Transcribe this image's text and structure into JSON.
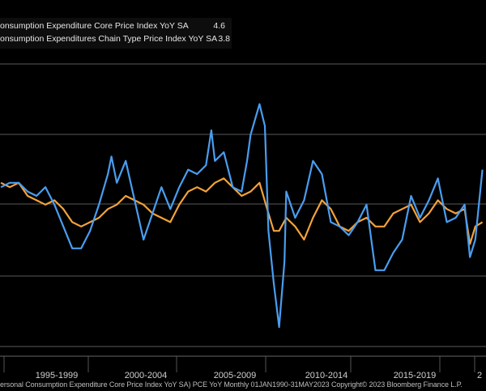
{
  "legend": [
    {
      "label": "onsumption Expenditure Core Price Index YoY SA",
      "value": "4.6",
      "color": "#f3a23a"
    },
    {
      "label": "onsumption Expenditures Chain Type Price Index YoY SA",
      "value": "3.8",
      "color": "#4a9df0"
    }
  ],
  "footer": "ersonal Consumption Expenditure Core Price Index YoY SA) PCE YoY  Monthly 01JAN1990-31MAY2023  Copyright© 2023 Bloomberg Finance L.P.",
  "chart_data": {
    "type": "line",
    "title": "",
    "xlabel": "",
    "ylabel": "",
    "x_tick_labels": [
      "1995-1999",
      "2000-2004",
      "2005-2009",
      "2010-2014",
      "2015-2019",
      "2"
    ],
    "grid": true,
    "background": "#000000",
    "series": [
      {
        "name": "onsumption Expenditure Core Price Index YoY SA",
        "color": "#f3a23a",
        "points": [
          [
            1994.0,
            2.3
          ],
          [
            1994.5,
            2.2
          ],
          [
            1995.0,
            2.3
          ],
          [
            1995.5,
            2.0
          ],
          [
            1996.0,
            1.9
          ],
          [
            1996.5,
            1.8
          ],
          [
            1997.0,
            1.9
          ],
          [
            1997.5,
            1.7
          ],
          [
            1998.0,
            1.4
          ],
          [
            1998.5,
            1.3
          ],
          [
            1999.0,
            1.4
          ],
          [
            1999.5,
            1.5
          ],
          [
            2000.0,
            1.7
          ],
          [
            2000.5,
            1.8
          ],
          [
            2001.0,
            2.0
          ],
          [
            2001.5,
            1.9
          ],
          [
            2002.0,
            1.8
          ],
          [
            2002.5,
            1.6
          ],
          [
            2003.0,
            1.5
          ],
          [
            2003.5,
            1.4
          ],
          [
            2004.0,
            1.8
          ],
          [
            2004.5,
            2.1
          ],
          [
            2005.0,
            2.2
          ],
          [
            2005.5,
            2.1
          ],
          [
            2006.0,
            2.3
          ],
          [
            2006.5,
            2.4
          ],
          [
            2007.0,
            2.2
          ],
          [
            2007.5,
            2.0
          ],
          [
            2008.0,
            2.1
          ],
          [
            2008.5,
            2.3
          ],
          [
            2009.0,
            1.6
          ],
          [
            2009.3,
            1.2
          ],
          [
            2009.6,
            1.2
          ],
          [
            2010.0,
            1.5
          ],
          [
            2010.5,
            1.3
          ],
          [
            2011.0,
            1.0
          ],
          [
            2011.5,
            1.5
          ],
          [
            2012.0,
            1.9
          ],
          [
            2012.5,
            1.7
          ],
          [
            2013.0,
            1.3
          ],
          [
            2013.5,
            1.2
          ],
          [
            2014.0,
            1.4
          ],
          [
            2014.5,
            1.5
          ],
          [
            2015.0,
            1.3
          ],
          [
            2015.5,
            1.3
          ],
          [
            2016.0,
            1.6
          ],
          [
            2016.5,
            1.7
          ],
          [
            2017.0,
            1.8
          ],
          [
            2017.5,
            1.4
          ],
          [
            2018.0,
            1.6
          ],
          [
            2018.5,
            1.9
          ],
          [
            2019.0,
            1.7
          ],
          [
            2019.5,
            1.6
          ],
          [
            2020.0,
            1.7
          ],
          [
            2020.3,
            0.9
          ],
          [
            2020.6,
            1.3
          ],
          [
            2021.0,
            1.4
          ]
        ]
      },
      {
        "name": "onsumption Expenditures Chain Type Price Index YoY SA",
        "color": "#4a9df0",
        "points": [
          [
            1994.0,
            2.2
          ],
          [
            1994.5,
            2.3
          ],
          [
            1995.0,
            2.3
          ],
          [
            1995.5,
            2.1
          ],
          [
            1996.0,
            2.0
          ],
          [
            1996.5,
            2.2
          ],
          [
            1997.0,
            1.8
          ],
          [
            1997.5,
            1.3
          ],
          [
            1998.0,
            0.8
          ],
          [
            1998.5,
            0.8
          ],
          [
            1999.0,
            1.2
          ],
          [
            1999.5,
            1.8
          ],
          [
            2000.0,
            2.5
          ],
          [
            2000.2,
            2.9
          ],
          [
            2000.5,
            2.3
          ],
          [
            2001.0,
            2.8
          ],
          [
            2001.5,
            1.9
          ],
          [
            2002.0,
            1.0
          ],
          [
            2002.5,
            1.6
          ],
          [
            2003.0,
            2.2
          ],
          [
            2003.5,
            1.7
          ],
          [
            2004.0,
            2.2
          ],
          [
            2004.5,
            2.6
          ],
          [
            2005.0,
            2.5
          ],
          [
            2005.5,
            2.7
          ],
          [
            2005.8,
            3.5
          ],
          [
            2006.0,
            2.8
          ],
          [
            2006.5,
            3.0
          ],
          [
            2007.0,
            2.2
          ],
          [
            2007.5,
            2.1
          ],
          [
            2007.8,
            2.8
          ],
          [
            2008.0,
            3.4
          ],
          [
            2008.5,
            4.1
          ],
          [
            2008.8,
            3.6
          ],
          [
            2009.0,
            1.2
          ],
          [
            2009.3,
            0.0
          ],
          [
            2009.6,
            -1.0
          ],
          [
            2009.9,
            0.5
          ],
          [
            2010.0,
            2.1
          ],
          [
            2010.5,
            1.5
          ],
          [
            2011.0,
            1.9
          ],
          [
            2011.5,
            2.8
          ],
          [
            2012.0,
            2.5
          ],
          [
            2012.5,
            1.4
          ],
          [
            2013.0,
            1.3
          ],
          [
            2013.5,
            1.1
          ],
          [
            2014.0,
            1.4
          ],
          [
            2014.5,
            1.8
          ],
          [
            2015.0,
            0.3
          ],
          [
            2015.5,
            0.3
          ],
          [
            2016.0,
            0.7
          ],
          [
            2016.5,
            1.0
          ],
          [
            2017.0,
            2.0
          ],
          [
            2017.5,
            1.5
          ],
          [
            2018.0,
            1.9
          ],
          [
            2018.5,
            2.4
          ],
          [
            2019.0,
            1.4
          ],
          [
            2019.5,
            1.5
          ],
          [
            2020.0,
            1.8
          ],
          [
            2020.3,
            0.6
          ],
          [
            2020.6,
            1.0
          ],
          [
            2021.0,
            2.6
          ]
        ]
      }
    ]
  }
}
